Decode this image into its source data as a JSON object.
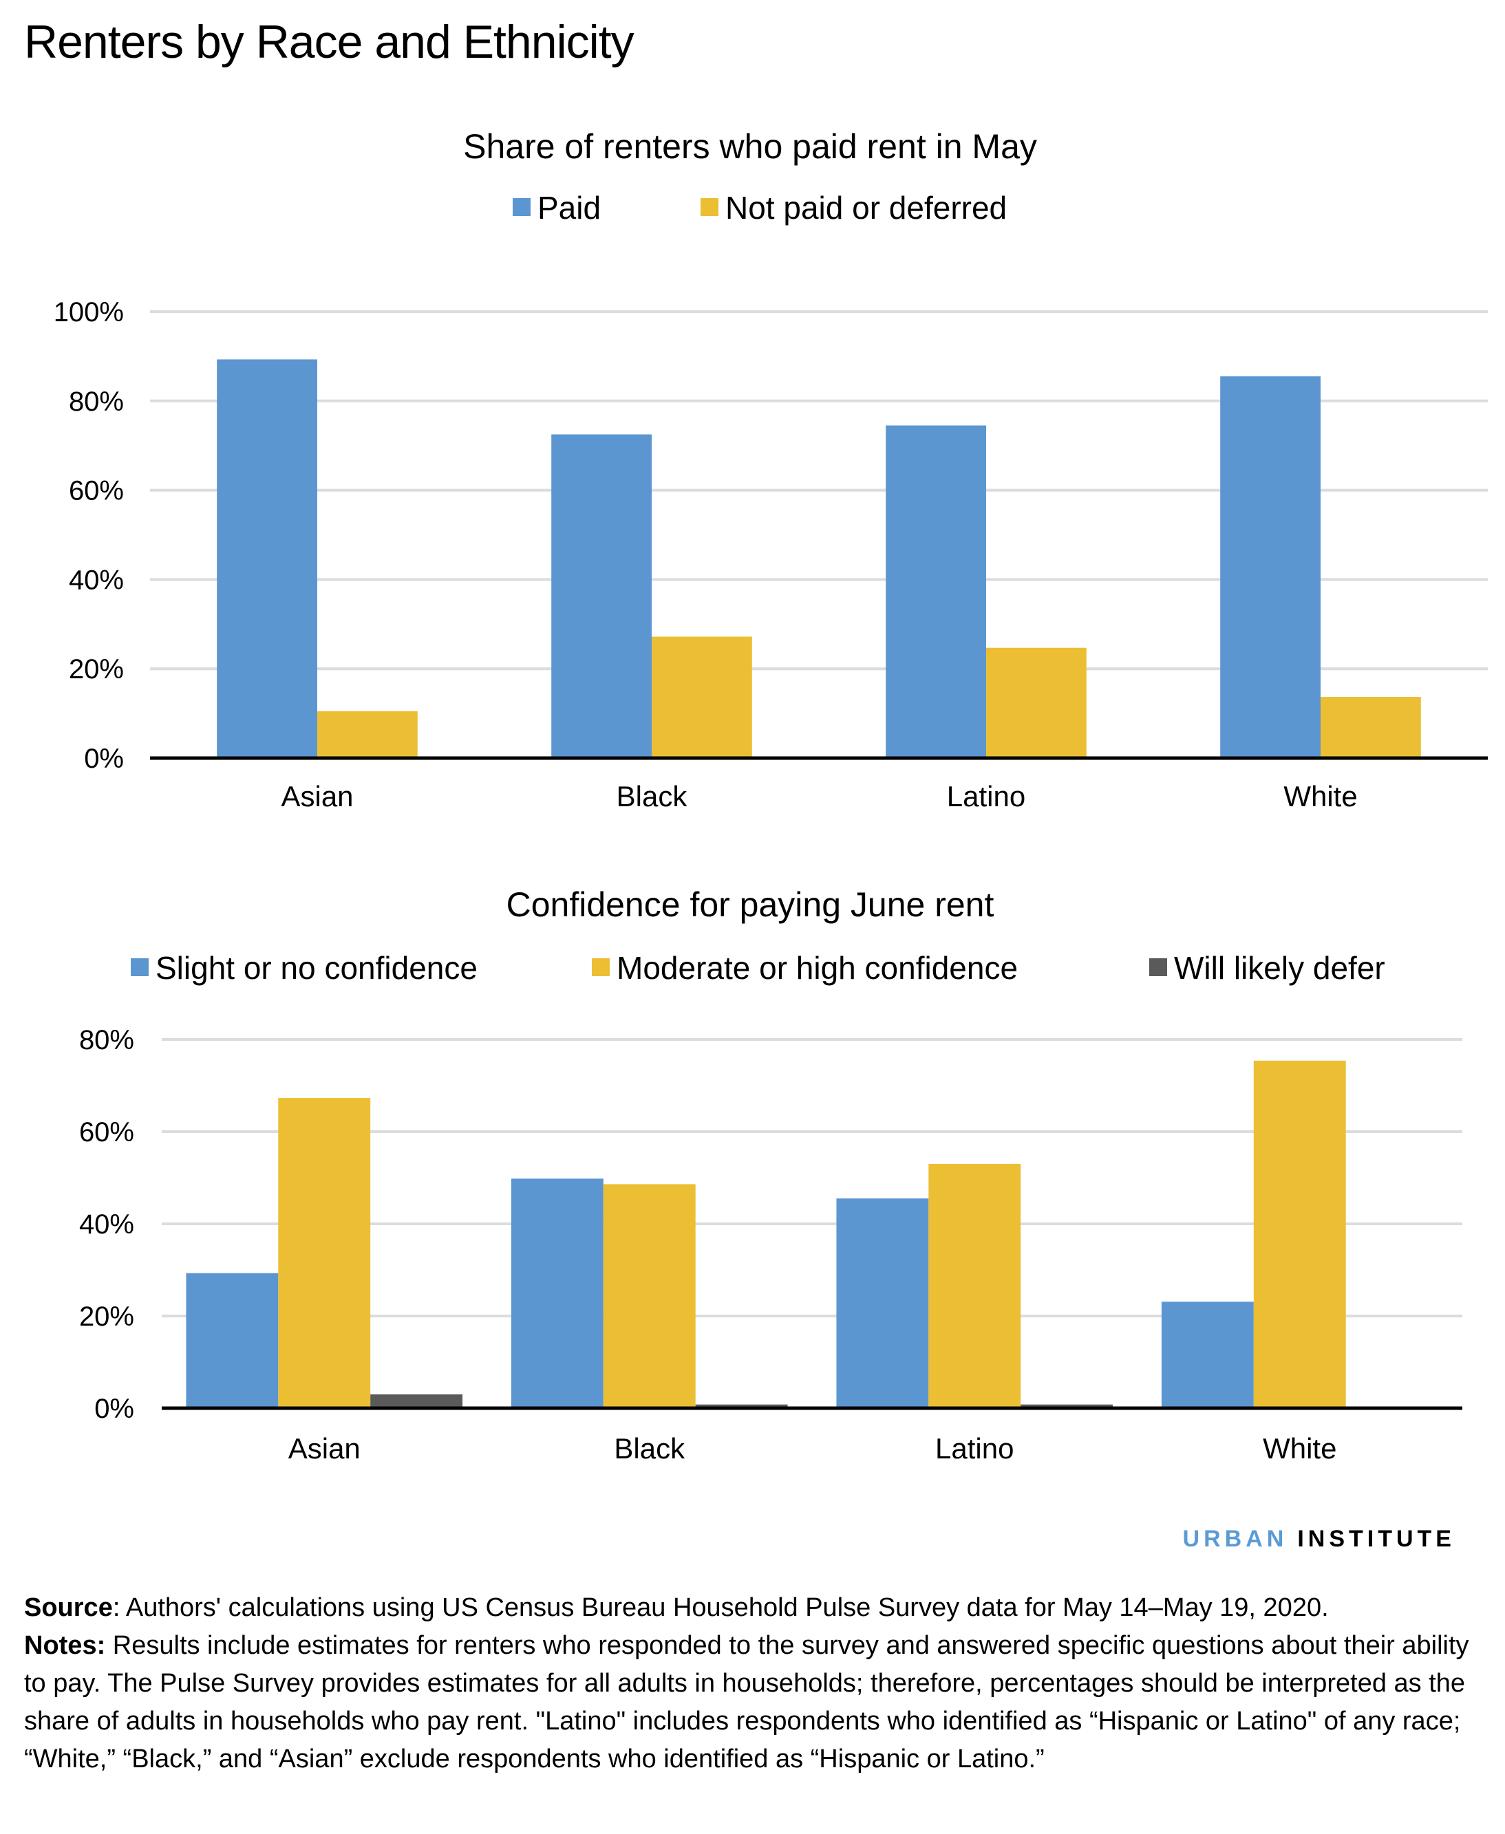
{
  "title": "Renters by Race and Ethnicity",
  "colors": {
    "blue": "#5b96d1",
    "yellow": "#ecbe33",
    "gray": "#5a5a5a",
    "gridline": "#dcdcdc",
    "axis": "#000000",
    "logo_blue": "#5b9bd5"
  },
  "chart_data": [
    {
      "type": "bar",
      "title": "Share of renters who paid rent in May",
      "categories": [
        "Asian",
        "Black",
        "Latino",
        "White"
      ],
      "series": [
        {
          "name": "Paid",
          "color_key": "blue",
          "values": [
            89.3,
            72.5,
            74.5,
            85.5
          ]
        },
        {
          "name": "Not paid or deferred",
          "color_key": "yellow",
          "values": [
            10.5,
            27.2,
            24.7,
            13.7
          ]
        }
      ],
      "xlabel": "",
      "ylabel": "",
      "ylim": [
        0,
        100
      ],
      "yticks": [
        0,
        20,
        40,
        60,
        80,
        100
      ],
      "ytick_labels": [
        "0%",
        "20%",
        "40%",
        "60%",
        "80%",
        "100%"
      ],
      "grid": true,
      "legend_position": "top-center"
    },
    {
      "type": "bar",
      "title": "Confidence for paying June rent",
      "categories": [
        "Asian",
        "Black",
        "Latino",
        "White"
      ],
      "series": [
        {
          "name": "Slight or no confidence",
          "color_key": "blue",
          "values": [
            29.3,
            49.8,
            45.5,
            23.1
          ]
        },
        {
          "name": "Moderate or high confidence",
          "color_key": "yellow",
          "values": [
            67.3,
            48.6,
            53.0,
            75.4
          ]
        },
        {
          "name": "Will likely defer",
          "color_key": "gray",
          "values": [
            3.0,
            0.8,
            0.8,
            0.0
          ]
        }
      ],
      "xlabel": "",
      "ylabel": "",
      "ylim": [
        0,
        80
      ],
      "yticks": [
        0,
        20,
        40,
        60,
        80
      ],
      "ytick_labels": [
        "0%",
        "20%",
        "40%",
        "60%",
        "80%"
      ],
      "grid": true,
      "legend_position": "top-center"
    }
  ],
  "logo": {
    "part1": "URBAN",
    "part2": "INSTITUTE"
  },
  "footer": {
    "source_label": "Source",
    "source_text": ": Authors' calculations using US Census Bureau Household Pulse Survey data for May 14–May 19, 2020.",
    "notes_label": "Notes:",
    "notes_text": " Results include estimates for renters who responded to the survey and answered specific questions about their ability to pay.  The Pulse Survey provides estimates for all adults in households; therefore, percentages should be interpreted as the share of adults in households who pay rent. \"Latino\" includes respondents who identified as “Hispanic or Latino\" of any race; “White,” “Black,” and “Asian” exclude respondents who identified as “Hispanic or Latino.”"
  }
}
